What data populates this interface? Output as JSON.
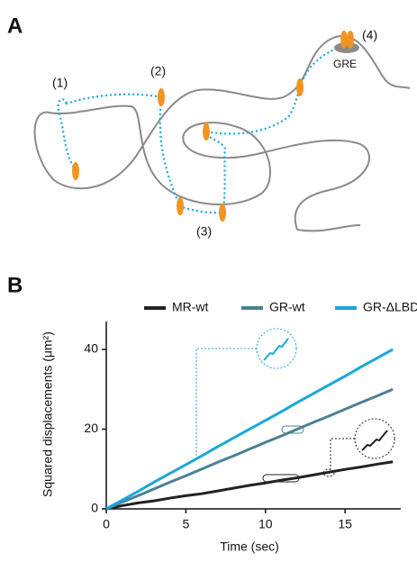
{
  "panel_labels": [
    "A",
    "B"
  ],
  "panel_a": {
    "sites": [
      "(1)",
      "(2)",
      "(3)",
      "(4)"
    ],
    "gre": "GRE"
  },
  "chart_data": {
    "type": "line",
    "xlabel": "Time (sec)",
    "ylabel": "Squared displacements (μm²)",
    "x": [
      0,
      1,
      2,
      3,
      4,
      5,
      6,
      7,
      8,
      9,
      10,
      11,
      12,
      13,
      14,
      15,
      16,
      17,
      18
    ],
    "series": [
      {
        "name": "MR-wt",
        "color": "#222222",
        "values": [
          0,
          0.8,
          1.5,
          2,
          2.7,
          3.3,
          3.8,
          4.5,
          5.2,
          5.9,
          6.5,
          7.2,
          7.8,
          8.5,
          9.2,
          9.9,
          10.5,
          11.2,
          11.8
        ]
      },
      {
        "name": "GR-wt",
        "color": "#4a8193",
        "values": [
          0,
          1.7,
          3.3,
          5,
          6.7,
          8.3,
          10,
          11.7,
          13.3,
          15,
          16.7,
          18.3,
          20,
          21.7,
          23.3,
          25,
          26.7,
          28.3,
          30
        ]
      },
      {
        "name": "GR-ΔLBD",
        "color": "#1aa7dc",
        "values": [
          0,
          2.2,
          4.4,
          6.7,
          8.9,
          11.1,
          13.3,
          15.6,
          17.8,
          20,
          22.2,
          24.4,
          26.7,
          28.9,
          31.1,
          33.3,
          35.6,
          37.8,
          40
        ]
      }
    ],
    "xlim": [
      0,
      18.5
    ],
    "xticks": [
      0,
      5,
      10,
      15
    ],
    "ylim": [
      0,
      47
    ],
    "yticks": [
      0,
      20,
      40
    ]
  }
}
